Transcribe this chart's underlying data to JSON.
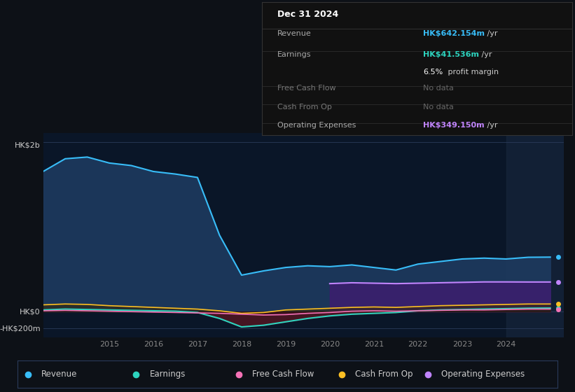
{
  "bg_color": "#0d1117",
  "plot_bg": "#0a1628",
  "info_bg": "#111111",
  "ylim": [
    -300,
    2100
  ],
  "ytick_labels": [
    "-HK$200m",
    "HK$0",
    "HK$2b"
  ],
  "ytick_vals": [
    -200,
    0,
    2000
  ],
  "revenue_color": "#38bdf8",
  "revenue_fill": "#1e3a5f",
  "earnings_color": "#2dd4bf",
  "earnings_fill_pos": "#1a3a38",
  "earnings_fill_neg": "#5a1520",
  "fcf_color": "#f472b6",
  "cashop_color": "#fbbf24",
  "opex_color": "#c084fc",
  "opex_fill": "#3b1f6e",
  "info_box": {
    "title": "Dec 31 2024",
    "rows": [
      {
        "label": "Revenue",
        "value": "HK$642.154m",
        "suffix": " /yr",
        "value_color": "#38bdf8",
        "label_color": "#aaaaaa",
        "dimmed": false
      },
      {
        "label": "Earnings",
        "value": "HK$41.536m",
        "suffix": " /yr",
        "value_color": "#2dd4bf",
        "label_color": "#aaaaaa",
        "dimmed": false
      },
      {
        "label": "",
        "value": "6.5%",
        "suffix": " profit margin",
        "value_color": "#ffffff",
        "label_color": "#aaaaaa",
        "dimmed": false
      },
      {
        "label": "Free Cash Flow",
        "value": "No data",
        "suffix": "",
        "value_color": "#666666",
        "label_color": "#777777",
        "dimmed": true
      },
      {
        "label": "Cash From Op",
        "value": "No data",
        "suffix": "",
        "value_color": "#666666",
        "label_color": "#777777",
        "dimmed": true
      },
      {
        "label": "Operating Expenses",
        "value": "HK$349.150m",
        "suffix": " /yr",
        "value_color": "#c084fc",
        "label_color": "#aaaaaa",
        "dimmed": false
      }
    ]
  },
  "legend_items": [
    {
      "label": "Revenue",
      "color": "#38bdf8"
    },
    {
      "label": "Earnings",
      "color": "#2dd4bf"
    },
    {
      "label": "Free Cash Flow",
      "color": "#f472b6"
    },
    {
      "label": "Cash From Op",
      "color": "#fbbf24"
    },
    {
      "label": "Operating Expenses",
      "color": "#c084fc"
    }
  ]
}
